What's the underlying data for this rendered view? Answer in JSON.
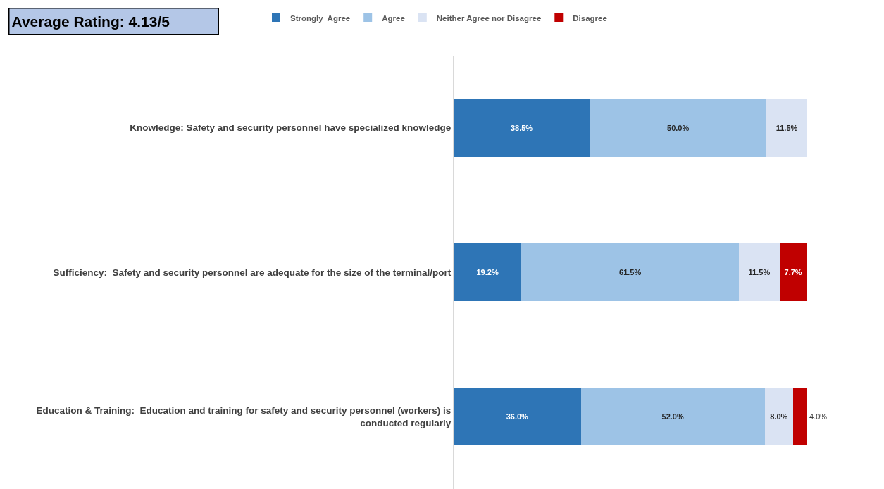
{
  "chart_data": {
    "type": "bar",
    "orientation": "horizontal",
    "stacked": true,
    "title": "Average Rating: 4.13/5",
    "categories": [
      "Knowledge: Safety and security personnel have specialized knowledge",
      "Sufficiency:  Safety and security personnel are adequate for the size of the terminal/port",
      "Education & Training:  Education and training for safety and security personnel (workers) is conducted regularly"
    ],
    "series": [
      {
        "name": "Strongly  Agree",
        "color": "#2e75b6",
        "values": [
          38.5,
          19.2,
          36.0
        ],
        "value_labels": [
          "38.5%",
          "19.2%",
          "36.0%"
        ]
      },
      {
        "name": "Agree",
        "color": "#9dc3e6",
        "values": [
          50.0,
          61.5,
          52.0
        ],
        "value_labels": [
          "50.0%",
          "61.5%",
          "52.0%"
        ]
      },
      {
        "name": "Neither Agree nor Disagree",
        "color": "#dae3f3",
        "values": [
          11.5,
          11.5,
          8.0
        ],
        "value_labels": [
          "11.5%",
          "11.5%",
          "8.0%"
        ]
      },
      {
        "name": "Disagree",
        "color": "#c00000",
        "values": [
          null,
          7.7,
          4.0
        ],
        "value_labels": [
          null,
          "7.7%",
          "4.0%"
        ]
      }
    ],
    "xlim": [
      0,
      100
    ],
    "tick_labels": "y",
    "grid": false,
    "legend": "top"
  }
}
